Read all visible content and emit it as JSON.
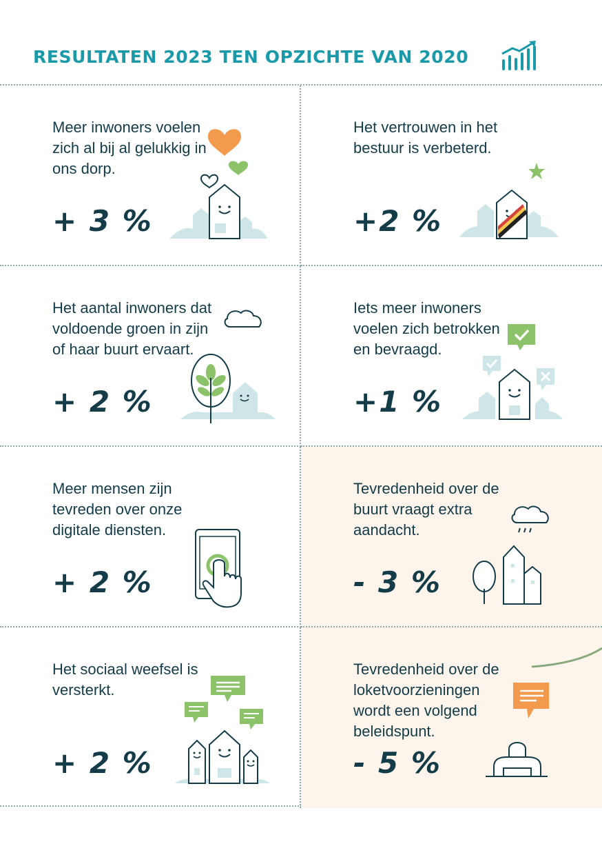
{
  "header": {
    "title": "RESULTATEN 2023 TEN OPZICHTE VAN 2020",
    "icon": "growth-chart-icon"
  },
  "colors": {
    "teal_title": "#1a9aa8",
    "dark_text": "#143c48",
    "orange": "#f29a4d",
    "green": "#8cc26a",
    "light_teal": "#cfe6e8",
    "negative_bg": "#fdf4ec"
  },
  "cells": [
    {
      "text": "Meer inwoners voelen zich al bij al gelukkig in ons dorp.",
      "value": "+ 3 %",
      "icon": "happy-house-hearts-icon"
    },
    {
      "text": "Het vertrouwen in het bestuur is verbeterd.",
      "value": "+2 %",
      "icon": "mayor-house-sash-icon"
    },
    {
      "text": "Het aantal inwoners dat voldoende groen in zijn of haar buurt ervaart.",
      "value": "+ 2 %",
      "icon": "tree-cloud-house-icon"
    },
    {
      "text": "Iets meer inwoners voelen zich betrokken en bevraagd.",
      "value": "+1 %",
      "icon": "house-vote-bubbles-icon"
    },
    {
      "text": "Meer mensen zijn tevreden over onze digitale diensten.",
      "value": "+ 2 %",
      "icon": "tablet-touch-icon"
    },
    {
      "text": "Tevredenheid over de buurt vraagt extra aandacht.",
      "value": "- 3 %",
      "icon": "rain-cloud-buildings-icon"
    },
    {
      "text": "Het sociaal weefsel is versterkt.",
      "value": "+ 2 %",
      "icon": "houses-chat-bubbles-icon"
    },
    {
      "text": "Tevredenheid over de loketvoorzieningen wordt een volgend beleidspunt.",
      "value": "- 5 %",
      "icon": "service-desk-icon"
    }
  ]
}
